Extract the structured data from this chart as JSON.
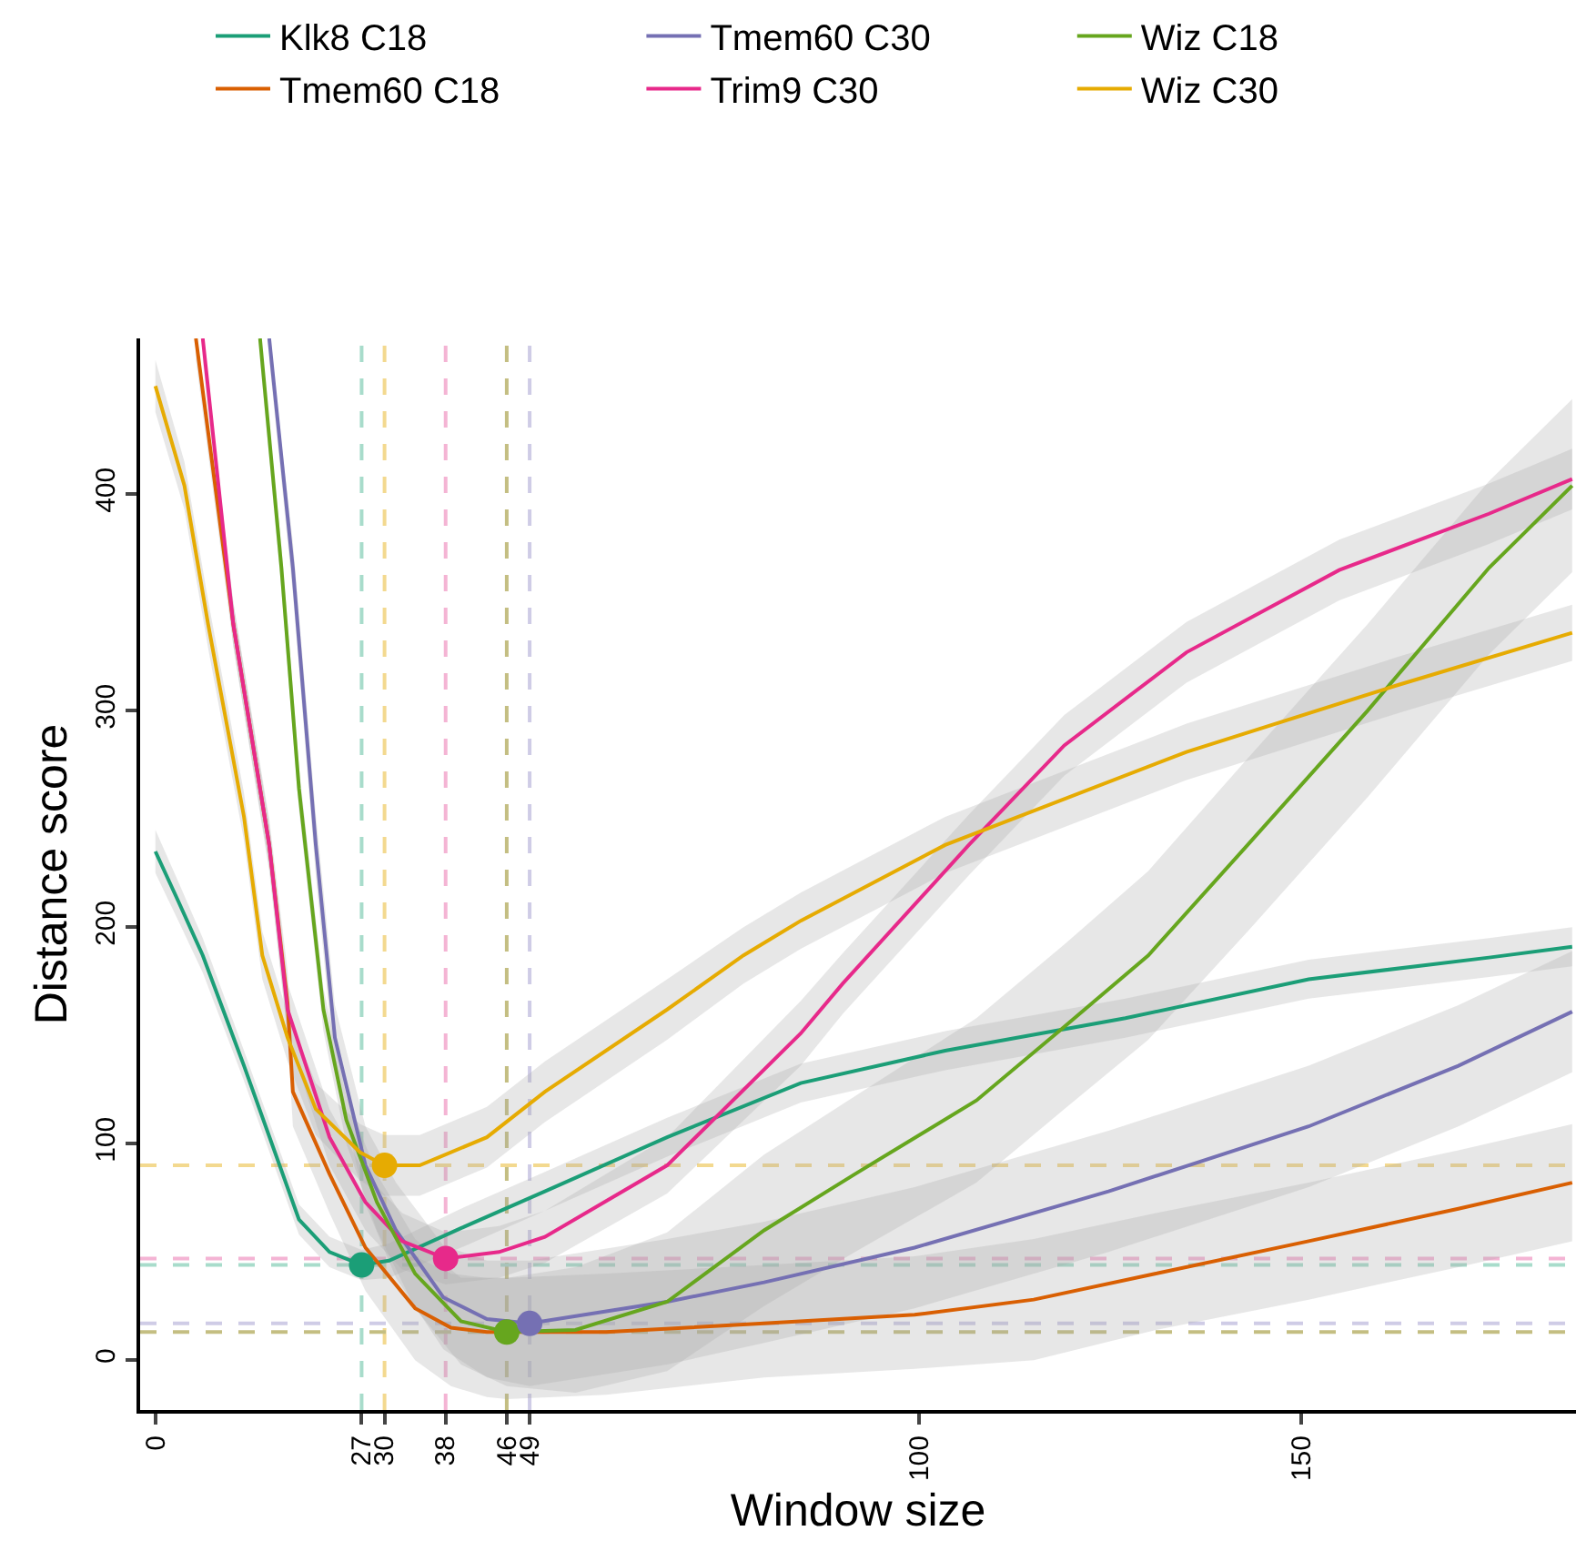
{
  "chart_data": {
    "type": "line",
    "xlabel": "Window size",
    "ylabel": "Distance score",
    "xlim": [
      -2,
      186
    ],
    "ylim": [
      -23,
      472
    ],
    "xticks": [
      0,
      27,
      30,
      38,
      46,
      49,
      100,
      150
    ],
    "yticks": [
      0,
      100,
      200,
      300,
      400
    ],
    "grid": false,
    "legend": "top",
    "marker": "none",
    "line_style": "solid",
    "series": [
      {
        "name": "Klk8 C18",
        "color": "#1b9e77",
        "x": [
          0,
          3,
          6.2,
          11.6,
          18.8,
          22.8,
          27,
          30.6,
          40,
          51,
          67,
          84.5,
          103.4,
          127,
          151,
          174.6,
          185.5
        ],
        "values": [
          235,
          212,
          187,
          136,
          65,
          50,
          44,
          46,
          61,
          78,
          103,
          128,
          143,
          158,
          176,
          186,
          191
        ],
        "lower": [
          225,
          203,
          179,
          129,
          58,
          43,
          37,
          38,
          52,
          69,
          94,
          119,
          134,
          149,
          167,
          177,
          182
        ],
        "upper": [
          245,
          221,
          195,
          143,
          72,
          57,
          51,
          54,
          70,
          87,
          112,
          137,
          152,
          167,
          185,
          195,
          200
        ]
      },
      {
        "name": "Tmem60 C18",
        "color": "#d95f02",
        "x": [
          5.3,
          10.2,
          14.9,
          17.3,
          18,
          22.8,
          27.5,
          34,
          38.7,
          43.4,
          46,
          59,
          79.7,
          99.4,
          115,
          131,
          151,
          170.6,
          185.5
        ],
        "values": [
          472,
          340,
          238,
          165,
          124,
          86,
          52,
          24,
          15,
          13,
          13,
          13,
          17,
          21,
          28,
          40,
          55,
          70,
          82
        ],
        "lower": [
          462,
          330,
          226,
          150,
          108,
          68,
          32,
          0,
          -12,
          -17,
          -18,
          -16,
          -8,
          -4,
          0,
          14,
          28,
          43,
          55
        ],
        "upper": [
          472,
          350,
          250,
          180,
          140,
          104,
          72,
          48,
          40,
          38,
          38,
          40,
          44,
          48,
          56,
          68,
          82,
          97,
          109
        ]
      },
      {
        "name": "Tmem60 C30",
        "color": "#7570b3",
        "x": [
          14.9,
          18,
          21,
          23.5,
          27.5,
          31.5,
          37.7,
          43.4,
          49,
          67,
          79.7,
          99.4,
          124.8,
          151,
          170.6,
          185.5
        ],
        "values": [
          472,
          366,
          238,
          149,
          90,
          60,
          29,
          19,
          17,
          27,
          36,
          52,
          78,
          108,
          136,
          161
        ],
        "lower": [
          462,
          354,
          224,
          134,
          72,
          38,
          5,
          -8,
          -12,
          -2,
          8,
          24,
          50,
          80,
          108,
          133
        ],
        "upper": [
          472,
          378,
          252,
          164,
          108,
          82,
          53,
          46,
          46,
          56,
          64,
          80,
          106,
          136,
          164,
          189
        ]
      },
      {
        "name": "Trim9 C30",
        "color": "#e7298a",
        "x": [
          6.2,
          10.2,
          14.9,
          17.3,
          22.8,
          27.5,
          32.3,
          38,
          45,
          51,
          67,
          84.5,
          90,
          106.5,
          119,
          135,
          155,
          174.6,
          185.5
        ],
        "values": [
          472,
          340,
          238,
          162,
          103,
          73,
          55,
          47,
          50,
          57,
          90,
          151,
          174,
          238,
          284,
          327,
          365,
          391,
          407
        ],
        "lower": [
          462,
          330,
          228,
          150,
          90,
          60,
          42,
          35,
          38,
          45,
          77,
          136,
          160,
          224,
          270,
          313,
          351,
          377,
          393
        ],
        "upper": [
          472,
          350,
          248,
          174,
          116,
          86,
          68,
          59,
          62,
          69,
          103,
          166,
          188,
          252,
          298,
          341,
          379,
          405,
          421
        ]
      },
      {
        "name": "Wiz C18",
        "color": "#66a61e",
        "x": [
          13.7,
          16.5,
          18.8,
          22,
          25,
          29,
          34,
          40,
          46,
          55,
          67,
          79.7,
          91.6,
          107.5,
          119,
          130,
          143,
          158.7,
          174.6,
          185.5
        ],
        "values": [
          472,
          366,
          264,
          162,
          111,
          73,
          40,
          18,
          13,
          14,
          27,
          60,
          86,
          120,
          154,
          187,
          238,
          300,
          366,
          404
        ],
        "lower": [
          462,
          356,
          254,
          152,
          100,
          60,
          24,
          -2,
          -12,
          -15,
          -5,
          25,
          50,
          82,
          116,
          148,
          198,
          260,
          326,
          364
        ],
        "upper": [
          472,
          376,
          274,
          172,
          122,
          86,
          56,
          38,
          38,
          43,
          59,
          95,
          122,
          158,
          192,
          226,
          278,
          340,
          406,
          444
        ]
      },
      {
        "name": "Wiz C30",
        "color": "#e6ab02",
        "x": [
          0,
          3.8,
          6.9,
          11.6,
          14,
          17.3,
          21,
          26.8,
          30,
          34.6,
          43.4,
          51,
          67,
          77,
          84.5,
          103.4,
          135,
          162.8,
          185.5
        ],
        "values": [
          450,
          404,
          340,
          251,
          187,
          149,
          116,
          96,
          90,
          90,
          103,
          124,
          162,
          187,
          203,
          238,
          281,
          312,
          336
        ],
        "lower": [
          438,
          393,
          329,
          240,
          176,
          138,
          104,
          83,
          76,
          76,
          89,
          110,
          148,
          174,
          190,
          225,
          268,
          299,
          323
        ],
        "upper": [
          462,
          415,
          351,
          262,
          198,
          160,
          128,
          109,
          104,
          104,
          117,
          138,
          176,
          200,
          216,
          251,
          294,
          325,
          349
        ]
      },
      {
        "type": "scatter",
        "marker": "circle",
        "color": "#1b9e77",
        "x": [
          27
        ],
        "values": [
          44
        ]
      },
      {
        "type": "scatter",
        "marker": "circle",
        "color": "#e6ab02",
        "x": [
          30
        ],
        "values": [
          90
        ]
      },
      {
        "type": "scatter",
        "marker": "circle",
        "color": "#e7298a",
        "x": [
          38
        ],
        "values": [
          47
        ]
      },
      {
        "type": "scatter",
        "marker": "circle",
        "color": "#66a61e",
        "x": [
          46
        ],
        "values": [
          13
        ]
      },
      {
        "type": "scatter",
        "marker": "circle",
        "color": "#7570b3",
        "x": [
          49
        ],
        "values": [
          17
        ]
      }
    ],
    "ref_lines": [
      {
        "axis": "x",
        "value": 27,
        "color": "#a8dccb",
        "line_style": "dashed"
      },
      {
        "axis": "x",
        "value": 30,
        "color": "#f3d98f",
        "line_style": "dashed"
      },
      {
        "axis": "x",
        "value": 38,
        "color": "#f4b4d4",
        "line_style": "dashed"
      },
      {
        "axis": "x",
        "value": 46,
        "color": "#c4be82",
        "line_style": "dashed"
      },
      {
        "axis": "x",
        "value": 49,
        "color": "#cfcce6",
        "line_style": "dashed"
      },
      {
        "axis": "y",
        "value": 44,
        "color": "#a8dccb",
        "line_style": "dashed"
      },
      {
        "axis": "y",
        "value": 90,
        "color": "#f3d98f",
        "line_style": "dashed"
      },
      {
        "axis": "y",
        "value": 47,
        "color": "#f4b4d4",
        "line_style": "dashed"
      },
      {
        "axis": "y",
        "value": 13,
        "color": "#c4be82",
        "line_style": "dashed"
      },
      {
        "axis": "y",
        "value": 17,
        "color": "#cfcce6",
        "line_style": "dashed"
      }
    ]
  }
}
